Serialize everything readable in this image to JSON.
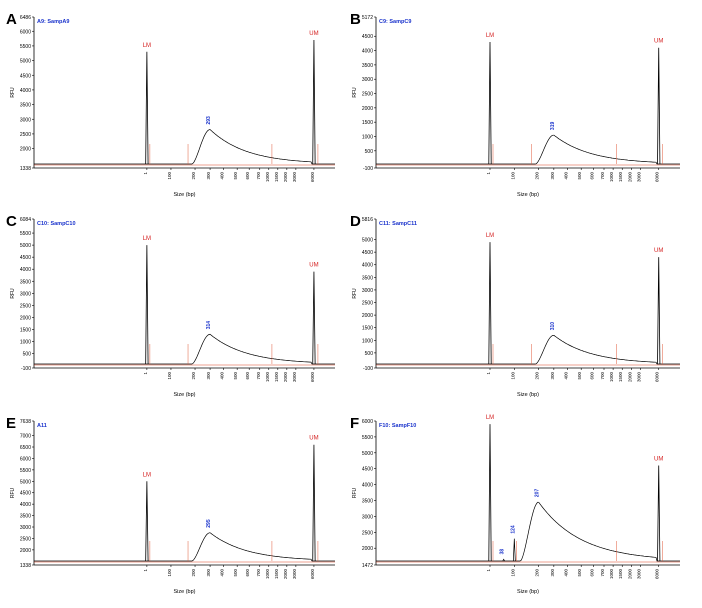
{
  "chart_data": [
    {
      "panel": "A",
      "title": "A9: SampA9",
      "type": "line",
      "ylabel": "RFU",
      "xlabel": "Size (bp)",
      "yticks": [
        1338,
        2000,
        2500,
        3000,
        3500,
        4000,
        4500,
        5000,
        5500,
        6000,
        6486
      ],
      "xticks": [
        "1",
        "100",
        "200",
        "300",
        "400",
        "500",
        "600",
        "700",
        "1000",
        "1500",
        "2000",
        "3000",
        "6000"
      ],
      "peaks": [
        {
          "size": "1",
          "rfu": 5300,
          "label": "LM",
          "label_color": "red"
        },
        {
          "size": "6000",
          "rfu": 5700,
          "label": "UM",
          "label_color": "red"
        },
        {
          "size": "300",
          "rfu": 2650,
          "label": "293",
          "label_color": "blue"
        }
      ]
    },
    {
      "panel": "B",
      "title": "C9: SampC9",
      "type": "line",
      "ylabel": "RFU",
      "xlabel": "Size (bp)",
      "yticks": [
        -100,
        500,
        1000,
        1500,
        2000,
        2500,
        3000,
        3500,
        4000,
        4500,
        5172
      ],
      "xticks": [
        "1",
        "100",
        "200",
        "300",
        "400",
        "500",
        "600",
        "700",
        "1000",
        "1500",
        "2000",
        "3000",
        "6000"
      ],
      "peaks": [
        {
          "size": "1",
          "rfu": 4300,
          "label": "LM",
          "label_color": "red"
        },
        {
          "size": "6000",
          "rfu": 4100,
          "label": "UM",
          "label_color": "red"
        },
        {
          "size": "300",
          "rfu": 1050,
          "label": "319",
          "label_color": "blue"
        }
      ]
    },
    {
      "panel": "C",
      "title": "C10: SampC10",
      "type": "line",
      "ylabel": "RFU",
      "xlabel": "Size (bp)",
      "yticks": [
        -100,
        500,
        1000,
        1500,
        2000,
        2500,
        3000,
        3500,
        4000,
        4500,
        5000,
        5500,
        6084
      ],
      "xticks": [
        "1",
        "100",
        "200",
        "300",
        "400",
        "500",
        "600",
        "700",
        "1000",
        "1500",
        "2000",
        "3000",
        "6000"
      ],
      "peaks": [
        {
          "size": "1",
          "rfu": 5000,
          "label": "LM",
          "label_color": "red"
        },
        {
          "size": "6000",
          "rfu": 3900,
          "label": "UM",
          "label_color": "red"
        },
        {
          "size": "300",
          "rfu": 1300,
          "label": "314",
          "label_color": "blue"
        }
      ]
    },
    {
      "panel": "D",
      "title": "C11: SampC11",
      "type": "line",
      "ylabel": "RFU",
      "xlabel": "Size (bp)",
      "yticks": [
        -100,
        500,
        1000,
        1500,
        2000,
        2500,
        3000,
        3500,
        4000,
        4500,
        5000,
        5816
      ],
      "xticks": [
        "1",
        "100",
        "200",
        "300",
        "400",
        "500",
        "600",
        "700",
        "1000",
        "1500",
        "2000",
        "3000",
        "6000"
      ],
      "peaks": [
        {
          "size": "1",
          "rfu": 4900,
          "label": "LM",
          "label_color": "red"
        },
        {
          "size": "6000",
          "rfu": 4300,
          "label": "UM",
          "label_color": "red"
        },
        {
          "size": "300",
          "rfu": 1200,
          "label": "310",
          "label_color": "blue"
        }
      ]
    },
    {
      "panel": "E",
      "title": "A11",
      "type": "line",
      "ylabel": "RFU",
      "xlabel": "Size (bp)",
      "yticks": [
        1338,
        2000,
        2500,
        3000,
        3500,
        4000,
        4500,
        5000,
        5500,
        6000,
        6500,
        7000,
        7638
      ],
      "xticks": [
        "1",
        "100",
        "200",
        "300",
        "400",
        "500",
        "600",
        "700",
        "1000",
        "1500",
        "2000",
        "3000",
        "6000"
      ],
      "peaks": [
        {
          "size": "1",
          "rfu": 5000,
          "label": "LM",
          "label_color": "red"
        },
        {
          "size": "6000",
          "rfu": 6600,
          "label": "UM",
          "label_color": "red"
        },
        {
          "size": "300",
          "rfu": 2750,
          "label": "295",
          "label_color": "blue"
        }
      ]
    },
    {
      "panel": "F",
      "title": "F10: SampF10",
      "type": "line",
      "ylabel": "RFU",
      "xlabel": "Size (bp)",
      "yticks": [
        1472,
        2000,
        2500,
        3000,
        3500,
        4000,
        4500,
        5000,
        5500,
        6000
      ],
      "xticks": [
        "1",
        "100",
        "200",
        "300",
        "400",
        "500",
        "600",
        "700",
        "1000",
        "1500",
        "2000",
        "3000",
        "6000"
      ],
      "peaks": [
        {
          "size": "1",
          "rfu": 5900,
          "label": "LM",
          "label_color": "red"
        },
        {
          "size": "6000",
          "rfu": 4600,
          "label": "UM",
          "label_color": "red"
        },
        {
          "size": "200",
          "rfu": 3450,
          "label": "207",
          "label_color": "blue"
        },
        {
          "size": "100",
          "rfu": 2300,
          "label": "124",
          "label_color": "blue"
        },
        {
          "size": "40",
          "rfu": 1650,
          "label": "38",
          "label_color": "blue"
        }
      ]
    }
  ]
}
